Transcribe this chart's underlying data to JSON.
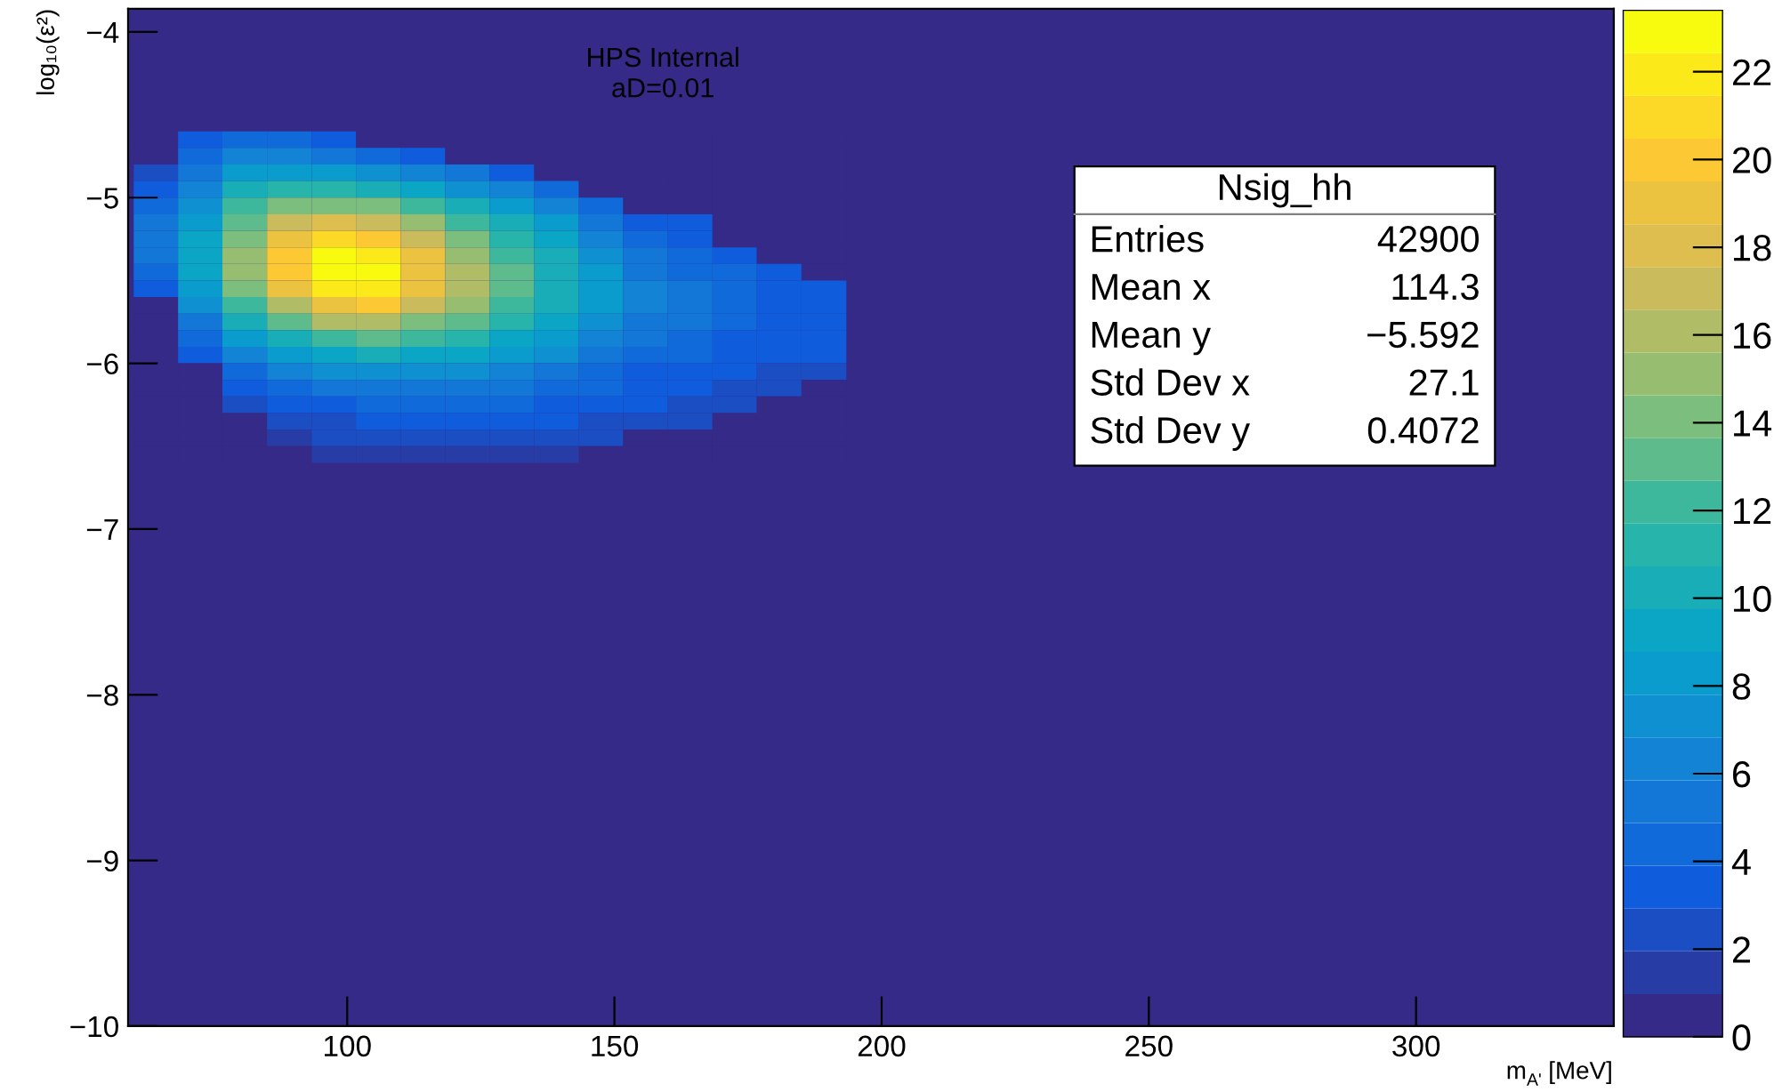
{
  "chart_data": {
    "type": "heatmap",
    "xlabel": "m$_{A'}$ [MeV]",
    "ylabel": "log₁₀(ε²)",
    "x": [
      64.2,
      72.5,
      80.8,
      89.2,
      97.5,
      105.8,
      114.2,
      122.5,
      130.8,
      139.2,
      147.5,
      155.8,
      164.2,
      172.5,
      180.8,
      189.2
    ],
    "y": [
      -4.65,
      -4.75,
      -4.85,
      -4.95,
      -5.05,
      -5.15,
      -5.25,
      -5.35,
      -5.45,
      -5.55,
      -5.65,
      -5.75,
      -5.85,
      -5.95,
      -6.05,
      -6.15,
      -6.25,
      -6.35,
      -6.45,
      -6.55
    ],
    "cells": [
      [
        0,
        3,
        4,
        4,
        3,
        0,
        0,
        0,
        0,
        0,
        0,
        0,
        0,
        0,
        0,
        0
      ],
      [
        0,
        4,
        6,
        6,
        5,
        4,
        3,
        0,
        0,
        0,
        0,
        0,
        0,
        0,
        0,
        0
      ],
      [
        2,
        5,
        8,
        8,
        8,
        7,
        6,
        5,
        3,
        0,
        0,
        0,
        0,
        0,
        0,
        0
      ],
      [
        3,
        6,
        10,
        11,
        11,
        10,
        9,
        7,
        6,
        4,
        0,
        0,
        0,
        0,
        0,
        0
      ],
      [
        4,
        7,
        12,
        14,
        14,
        14,
        12,
        10,
        8,
        6,
        4,
        0,
        0,
        0,
        0,
        0
      ],
      [
        5,
        8,
        13,
        17,
        18,
        17,
        15,
        12,
        10,
        8,
        5,
        3,
        3,
        0,
        0,
        0
      ],
      [
        5,
        9,
        14,
        19,
        21,
        20,
        17,
        14,
        11,
        9,
        6,
        4,
        3,
        0,
        0,
        0
      ],
      [
        5,
        9,
        15,
        20,
        23,
        22,
        19,
        15,
        12,
        10,
        7,
        5,
        4,
        3,
        0,
        0
      ],
      [
        4,
        9,
        15,
        20,
        23,
        23,
        19,
        16,
        13,
        10,
        8,
        5,
        4,
        4,
        3,
        0
      ],
      [
        3,
        8,
        14,
        19,
        22,
        22,
        19,
        16,
        13,
        10,
        8,
        6,
        5,
        4,
        3,
        3
      ],
      [
        0,
        7,
        12,
        16,
        19,
        20,
        17,
        15,
        12,
        10,
        8,
        6,
        5,
        4,
        3,
        3
      ],
      [
        0,
        5,
        10,
        13,
        16,
        16,
        14,
        13,
        11,
        9,
        7,
        5,
        5,
        4,
        3,
        3
      ],
      [
        0,
        4,
        8,
        10,
        12,
        13,
        12,
        11,
        9,
        8,
        6,
        5,
        4,
        3,
        3,
        3
      ],
      [
        0,
        3,
        6,
        8,
        9,
        10,
        9,
        9,
        8,
        7,
        5,
        4,
        4,
        3,
        3,
        3
      ],
      [
        0,
        0,
        4,
        6,
        7,
        7,
        7,
        7,
        6,
        5,
        4,
        3,
        3,
        3,
        2,
        2
      ],
      [
        0,
        0,
        3,
        4,
        5,
        5,
        5,
        5,
        5,
        4,
        4,
        3,
        3,
        2,
        2,
        0
      ],
      [
        0,
        0,
        2,
        3,
        3,
        4,
        4,
        4,
        4,
        3,
        3,
        3,
        2,
        2,
        0,
        0
      ],
      [
        0,
        0,
        0,
        2,
        2,
        3,
        3,
        3,
        3,
        3,
        2,
        2,
        2,
        0,
        0,
        0
      ],
      [
        0,
        0,
        0,
        1,
        2,
        2,
        2,
        2,
        2,
        2,
        2,
        0,
        0,
        0,
        0,
        0
      ],
      [
        0,
        0,
        0,
        0,
        1,
        1,
        1,
        1,
        1,
        1,
        0,
        0,
        0,
        0,
        0,
        0
      ]
    ],
    "xlim": [
      59,
      337
    ],
    "ylim": [
      -10,
      -3.86
    ],
    "xticks": [
      100,
      150,
      200,
      250,
      300
    ],
    "yticks": [
      {
        "value": -4,
        "label": "−4"
      },
      {
        "value": -5,
        "label": "−5"
      },
      {
        "value": -6,
        "label": "−6"
      },
      {
        "value": -7,
        "label": "−7"
      },
      {
        "value": -8,
        "label": "−8"
      },
      {
        "value": -9,
        "label": "−9"
      },
      {
        "value": -10,
        "label": "−10"
      }
    ],
    "clim": [
      0,
      23.4
    ],
    "cticks": [
      0,
      2,
      4,
      6,
      8,
      10,
      12,
      14,
      16,
      18,
      20,
      22
    ],
    "annotations": [
      "HPS Internal",
      "aD=0.01",
      "Nsig_hh",
      "Entries",
      "42900",
      "Mean x",
      "114.3",
      "Mean y",
      "−5.592",
      "Std Dev x",
      "27.1",
      "Std Dev y",
      "0.4072"
    ]
  }
}
